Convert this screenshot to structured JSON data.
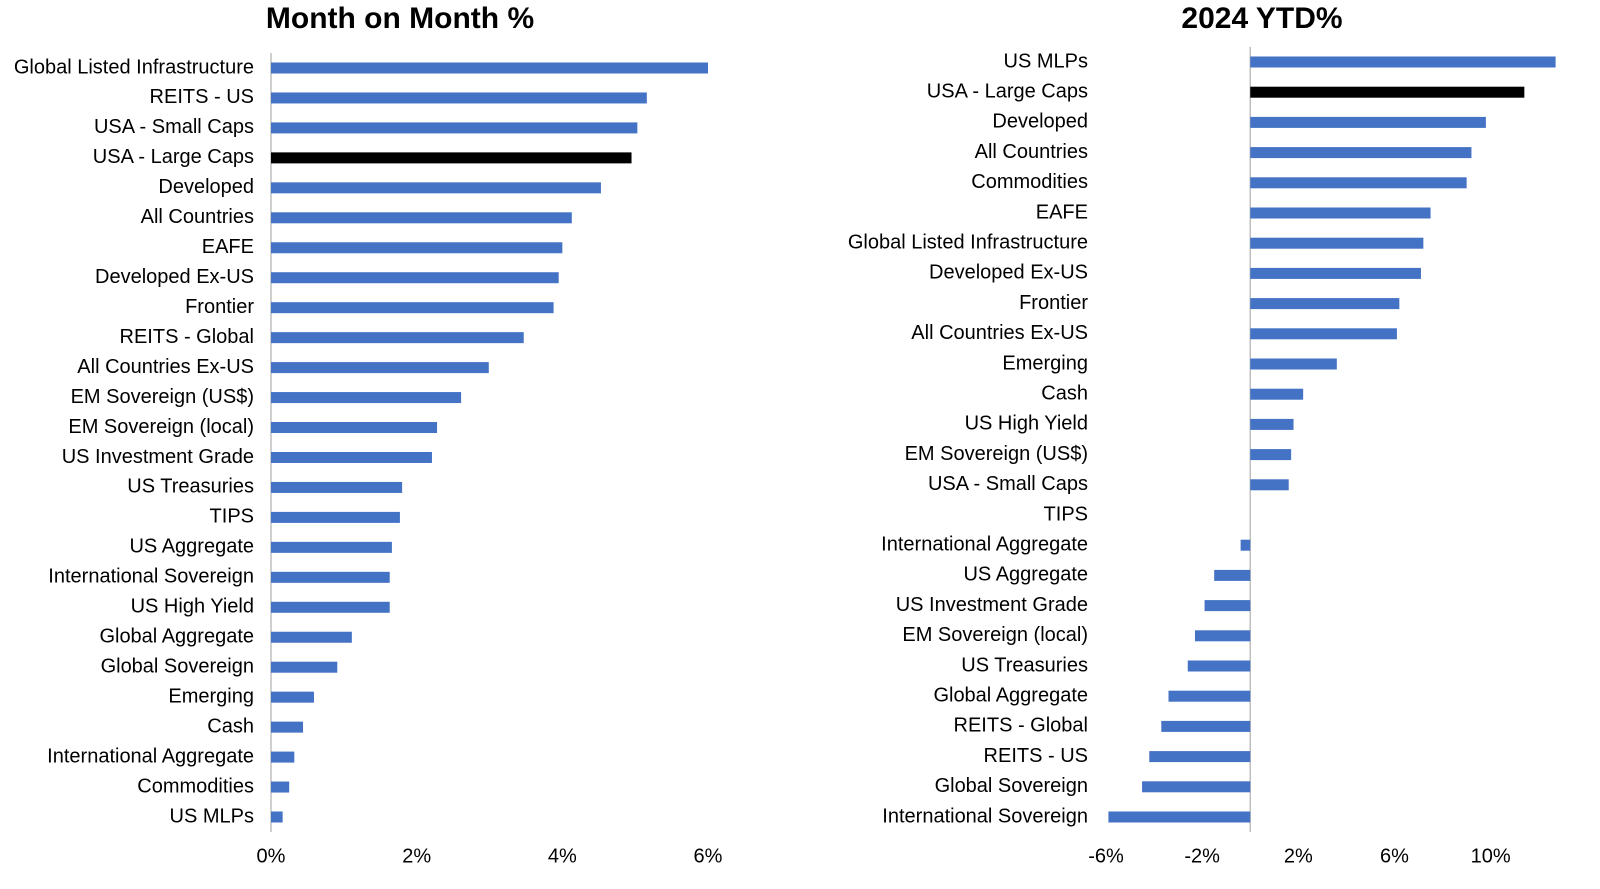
{
  "chart_data": [
    {
      "type": "hbar",
      "title": "Month on Month %",
      "categories": [
        "Global Listed Infrastructure",
        "REITS - US",
        "USA - Small Caps",
        "USA - Large Caps",
        "Developed",
        "All Countries",
        "EAFE",
        "Developed Ex-US",
        "Frontier",
        "REITS - Global",
        "All Countries Ex-US",
        "EM Sovereign (US$)",
        "EM Sovereign (local)",
        "US Investment Grade",
        "US Treasuries",
        "TIPS",
        "US Aggregate",
        "International Sovereign",
        "US High Yield",
        "Global Aggregate",
        "Global Sovereign",
        "Emerging",
        "Cash",
        "International Aggregate",
        "Commodities",
        "US MLPs"
      ],
      "values": [
        6.0,
        5.16,
        5.03,
        4.95,
        4.53,
        4.13,
        4.0,
        3.95,
        3.88,
        3.47,
        2.99,
        2.61,
        2.28,
        2.21,
        1.8,
        1.77,
        1.66,
        1.63,
        1.63,
        1.11,
        0.91,
        0.59,
        0.44,
        0.32,
        0.25,
        0.16
      ],
      "colors": [
        "#4472c4",
        "#4472c4",
        "#4472c4",
        "#000000",
        "#4472c4",
        "#4472c4",
        "#4472c4",
        "#4472c4",
        "#4472c4",
        "#4472c4",
        "#4472c4",
        "#4472c4",
        "#4472c4",
        "#4472c4",
        "#4472c4",
        "#4472c4",
        "#4472c4",
        "#4472c4",
        "#4472c4",
        "#4472c4",
        "#4472c4",
        "#4472c4",
        "#4472c4",
        "#4472c4",
        "#4472c4",
        "#4472c4"
      ],
      "xlim": [
        0,
        6
      ],
      "xticks": [
        {
          "value": 0,
          "label": "0%"
        },
        {
          "value": 2,
          "label": "2%"
        },
        {
          "value": 4,
          "label": "4%"
        },
        {
          "value": 6,
          "label": "6%"
        }
      ]
    },
    {
      "type": "hbar",
      "title": "2024 YTD%",
      "categories": [
        "US MLPs",
        "USA - Large Caps",
        "Developed",
        "All Countries",
        "Commodities",
        "EAFE",
        "Global Listed Infrastructure",
        "Developed Ex-US",
        "Frontier",
        "All Countries Ex-US",
        "Emerging",
        "Cash",
        "US High Yield",
        "EM Sovereign (US$)",
        "USA - Small Caps",
        "TIPS",
        "International Aggregate",
        "US Aggregate",
        "US Investment Grade",
        "EM Sovereign (local)",
        "US Treasuries",
        "Global Aggregate",
        "REITS - Global",
        "REITS - US",
        "Global Sovereign",
        "International Sovereign"
      ],
      "values": [
        12.7,
        11.4,
        9.8,
        9.2,
        9.0,
        7.5,
        7.2,
        7.1,
        6.2,
        6.1,
        3.6,
        2.2,
        1.8,
        1.7,
        1.6,
        0,
        -0.4,
        -1.5,
        -1.9,
        -2.3,
        -2.6,
        -3.4,
        -3.7,
        -4.2,
        -4.5,
        -5.9
      ],
      "colors": [
        "#4472c4",
        "#000000",
        "#4472c4",
        "#4472c4",
        "#4472c4",
        "#4472c4",
        "#4472c4",
        "#4472c4",
        "#4472c4",
        "#4472c4",
        "#4472c4",
        "#4472c4",
        "#4472c4",
        "#4472c4",
        "#4472c4",
        "#4472c4",
        "#4472c4",
        "#4472c4",
        "#4472c4",
        "#4472c4",
        "#4472c4",
        "#4472c4",
        "#4472c4",
        "#4472c4",
        "#4472c4",
        "#4472c4"
      ],
      "xlim": [
        -6,
        12.8
      ],
      "xticks": [
        {
          "value": -6,
          "label": "-6%"
        },
        {
          "value": -2,
          "label": "-2%"
        },
        {
          "value": 2,
          "label": "2%"
        },
        {
          "value": 6,
          "label": "6%"
        },
        {
          "value": 10,
          "label": "10%"
        }
      ]
    }
  ]
}
